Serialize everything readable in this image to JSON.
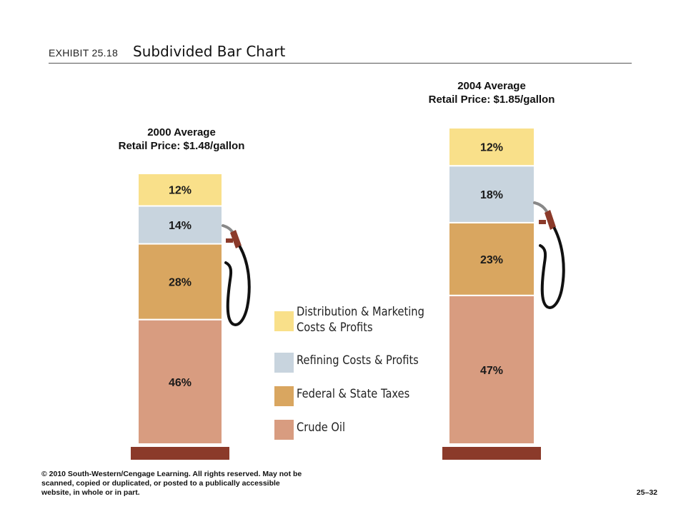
{
  "header": {
    "exhibit": "EXHIBIT 25.18",
    "title": "Subdivided Bar Chart"
  },
  "chart_data": {
    "type": "bar",
    "stacked": true,
    "unit": "%",
    "categories": [
      "2000 Average Retail Price: $1.48/gallon",
      "2004 Average Retail Price: $1.85/gallon"
    ],
    "bar_titles": [
      [
        "2000 Average",
        "Retail Price: $1.48/gallon"
      ],
      [
        "2004 Average",
        "Retail Price: $1.85/gallon"
      ]
    ],
    "series": [
      {
        "name": "Crude Oil",
        "color": "#d89c80",
        "values": [
          46,
          47
        ],
        "labels": [
          "46%",
          "47%"
        ]
      },
      {
        "name": "Federal & State Taxes",
        "color": "#d9a660",
        "values": [
          28,
          23
        ],
        "labels": [
          "28%",
          "23%"
        ]
      },
      {
        "name": "Refining Costs & Profits",
        "color": "#c8d4de",
        "values": [
          14,
          18
        ],
        "labels": [
          "14%",
          "18%"
        ]
      },
      {
        "name": "Distribution & Marketing Costs & Profits",
        "color": "#f9e08a",
        "values": [
          12,
          12
        ],
        "labels": [
          "12%",
          "12%"
        ]
      }
    ],
    "base_color": "#8b3a2a",
    "legend": {
      "placement": "center-bottom",
      "items": [
        {
          "lines": [
            "Distribution & Marketing",
            "Costs & Profits"
          ],
          "color": "#f9e08a"
        },
        {
          "lines": [
            "Refining Costs & Profits"
          ],
          "color": "#c8d4de"
        },
        {
          "lines": [
            "Federal & State Taxes"
          ],
          "color": "#d9a660"
        },
        {
          "lines": [
            "Crude Oil"
          ],
          "color": "#d89c80"
        }
      ]
    }
  },
  "footer": {
    "copyright_lines": [
      "© 2010 South-Western/Cengage Learning. All rights reserved. May not be",
      "scanned, copied or duplicated, or posted to a publically accessible",
      "website, in whole or in part."
    ],
    "page_number": "25–32"
  }
}
